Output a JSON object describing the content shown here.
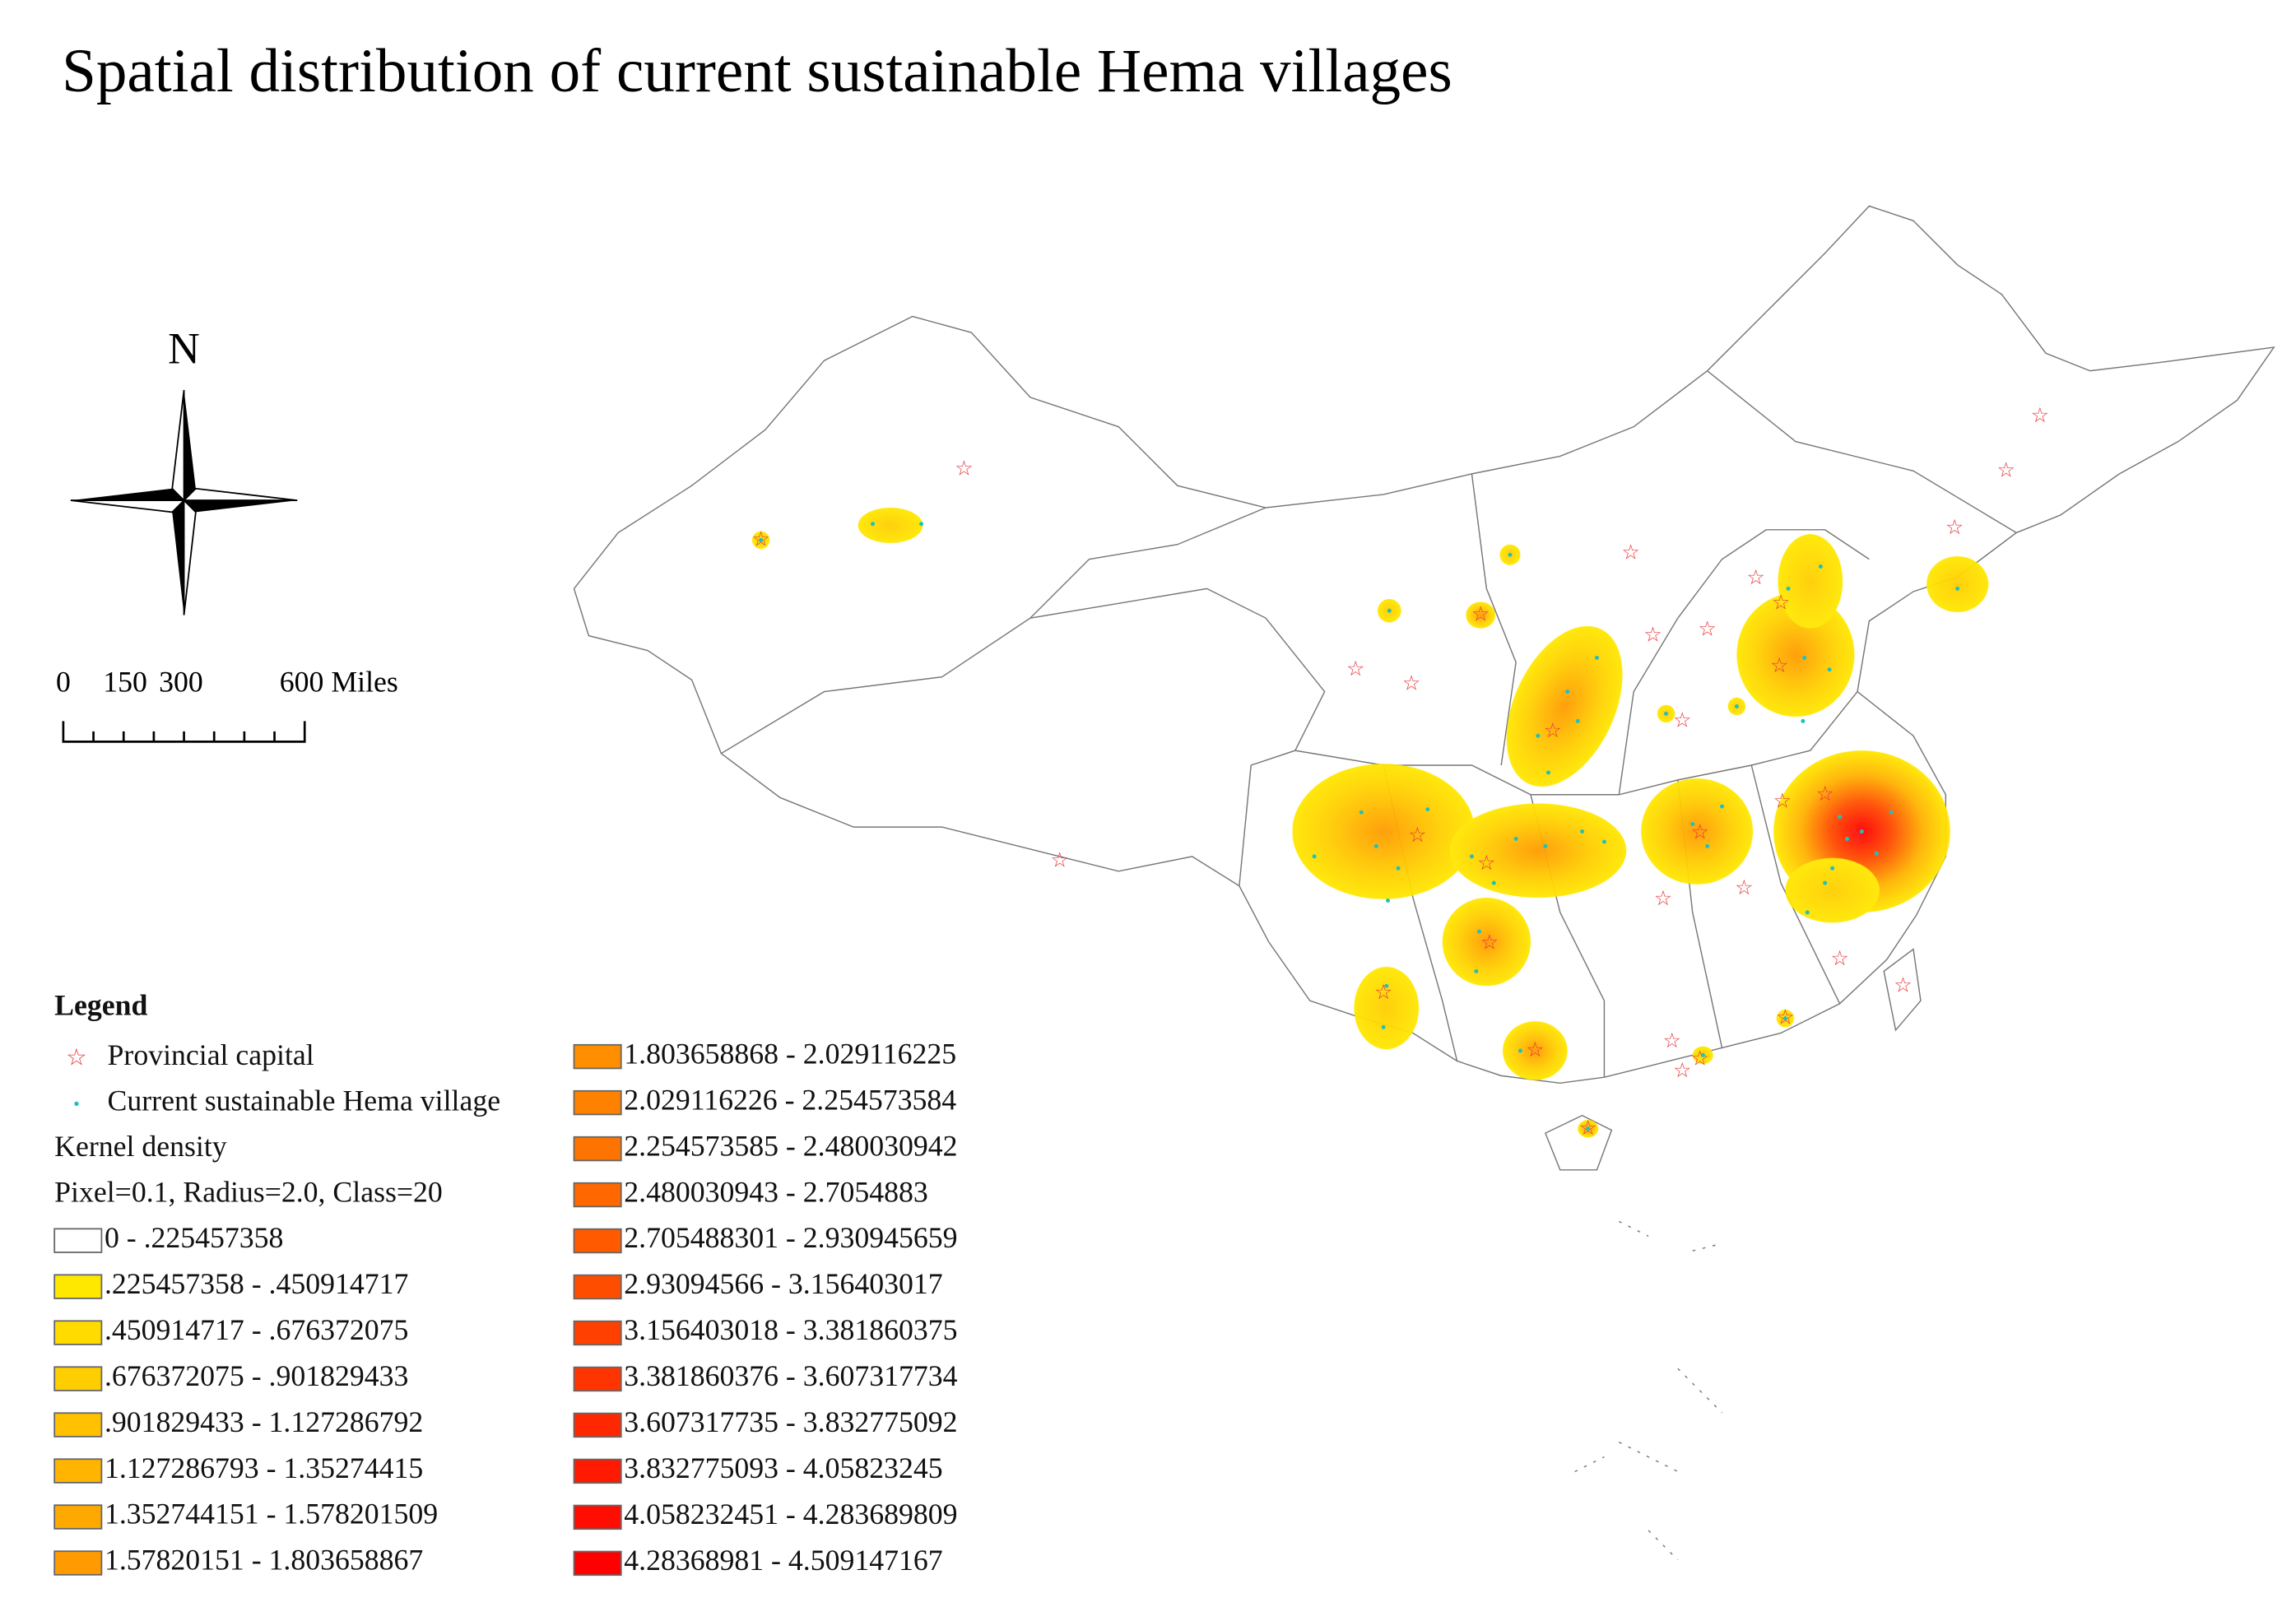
{
  "title": "Spatial distribution of current sustainable Hema villages",
  "north_label": "N",
  "scale_bar": {
    "labels": [
      "0",
      "150",
      "300",
      "600 Miles"
    ]
  },
  "legend": {
    "title": "Legend",
    "symbols": [
      {
        "label": "Provincial capital",
        "color": "#e8383d"
      },
      {
        "label": "Current sustainable Hema village",
        "color": "#20c0c0"
      }
    ],
    "density_title": "Kernel density",
    "density_params": "Pixel=0.1, Radius=2.0, Class=20",
    "classes": [
      {
        "label": "0 - .225457358",
        "color": "#ffffff"
      },
      {
        "label": ".225457358 - .450914717",
        "color": "#ffe800"
      },
      {
        "label": ".450914717 - .676372075",
        "color": "#ffdb00"
      },
      {
        "label": ".676372075 - .901829433",
        "color": "#ffce00"
      },
      {
        "label": ".901829433 - 1.127286792",
        "color": "#ffc100"
      },
      {
        "label": "1.127286793 - 1.35274415",
        "color": "#ffb400"
      },
      {
        "label": "1.352744151 - 1.578201509",
        "color": "#ffa800"
      },
      {
        "label": "1.57820151 - 1.803658867",
        "color": "#ff9b00"
      },
      {
        "label": "1.803658868 - 2.029116225",
        "color": "#ff8e00"
      },
      {
        "label": "2.029116226 - 2.254573584",
        "color": "#ff8100"
      },
      {
        "label": "2.254573585 - 2.480030942",
        "color": "#ff7400"
      },
      {
        "label": "2.480030943 - 2.7054883",
        "color": "#ff6700"
      },
      {
        "label": "2.705488301 - 2.930945659",
        "color": "#ff5a00"
      },
      {
        "label": "2.93094566 - 3.156403017",
        "color": "#ff4d00"
      },
      {
        "label": "3.156403018 - 3.381860375",
        "color": "#ff4000"
      },
      {
        "label": "3.381860376 - 3.607317734",
        "color": "#ff3400"
      },
      {
        "label": "3.607317735 - 3.832775092",
        "color": "#ff2700"
      },
      {
        "label": "3.832775093 - 4.05823245",
        "color": "#ff1a00"
      },
      {
        "label": "4.058232451 - 4.283689809",
        "color": "#ff0d00"
      },
      {
        "label": "4.28368981 - 4.509147167",
        "color": "#ff0000"
      }
    ]
  }
}
